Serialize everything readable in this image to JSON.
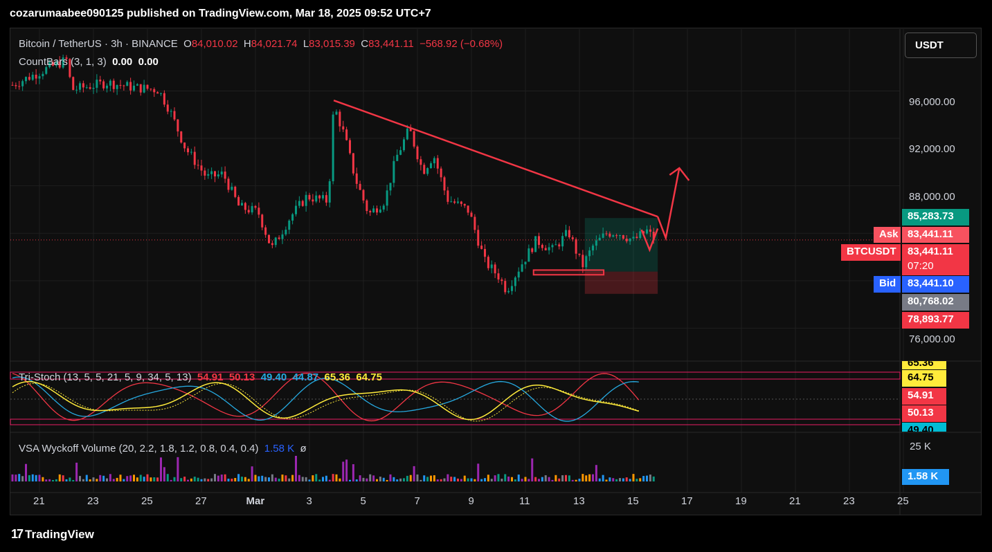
{
  "header": "cozarumaabee090125 published on TradingView.com, Mar 18, 2025 09:52 UTC+7",
  "legend": {
    "symbol": "Bitcoin / TetherUS · 3h · BINANCE",
    "o_label": "O",
    "o": "84,010.02",
    "h_label": "H",
    "h": "84,021.74",
    "l_label": "L",
    "l": "83,015.39",
    "c_label": "C",
    "c": "83,441.11",
    "change": "−568.92 (−0.68%)",
    "countbars": "CountBars (3, 1, 3)",
    "countbars_v1": "0.00",
    "countbars_v2": "0.00",
    "tristoch": "Tri-Stoch (13, 5, 5, 21, 5, 9, 34, 5, 13)",
    "ts_v1": "54.91",
    "ts_v2": "50.13",
    "ts_v3": "49.40",
    "ts_v4": "44.87",
    "ts_v5": "65.36",
    "ts_v6": "64.75",
    "vsa": "VSA Wyckoff Volume (20, 2.2, 1.8, 1.2, 0.8, 0.4, 0.4)",
    "vsa_v": "1.58 K",
    "vsa_icon": "ø"
  },
  "currency": "USDT",
  "price_axis": [
    "96,000.00",
    "92,000.00",
    "88,000.00",
    "76,000.00"
  ],
  "price_tags": {
    "target": "85,283.73",
    "ask_label": "Ask",
    "ask": "83,441.11",
    "symbol_label": "BTCUSDT",
    "last": "83,441.11",
    "countdown": "07:20",
    "bid_label": "Bid",
    "bid": "83,441.10",
    "entry": "80,768.02",
    "stop": "78,893.77"
  },
  "stoch_axis": {
    "top": "65.36",
    "v1": "64.75",
    "v2": "54.91",
    "v3": "50.13",
    "bottom": "49.40"
  },
  "volume_axis": {
    "max": "25 K",
    "current": "1.58 K"
  },
  "time_axis": [
    "21",
    "23",
    "25",
    "27",
    "Mar",
    "3",
    "5",
    "7",
    "9",
    "11",
    "13",
    "15",
    "17",
    "19",
    "21",
    "23",
    "25"
  ],
  "brand": "TradingView",
  "colors": {
    "up": "#089981",
    "down": "#f23645",
    "drawing": "#f23645",
    "bg": "#0f0f0f",
    "grid": "#1f1f1f"
  },
  "chart_data": {
    "type": "candlestick",
    "title": "Bitcoin / TetherUS · 3h · BINANCE",
    "y_range": [
      74800,
      99000
    ],
    "close_path": [
      [
        0,
        96500
      ],
      [
        1.2,
        97800
      ],
      [
        2.0,
        98600
      ],
      [
        2.2,
        96100
      ],
      [
        3.5,
        96700
      ],
      [
        4.5,
        96300
      ],
      [
        5.4,
        96100
      ],
      [
        5.8,
        94500
      ],
      [
        6.4,
        91200
      ],
      [
        7.2,
        88700
      ],
      [
        7.8,
        89000
      ],
      [
        8.4,
        86200
      ],
      [
        9.1,
        85800
      ],
      [
        9.6,
        82700
      ],
      [
        10.3,
        85400
      ],
      [
        10.9,
        87100
      ],
      [
        11.7,
        86700
      ],
      [
        11.9,
        94800
      ],
      [
        12.3,
        92200
      ],
      [
        12.7,
        88600
      ],
      [
        13.2,
        85600
      ],
      [
        13.8,
        86800
      ],
      [
        14.2,
        90300
      ],
      [
        14.7,
        92800
      ],
      [
        15.2,
        89200
      ],
      [
        15.6,
        90600
      ],
      [
        16.1,
        86900
      ],
      [
        16.6,
        86300
      ],
      [
        16.9,
        85900
      ],
      [
        17.5,
        81600
      ],
      [
        18.0,
        80400
      ],
      [
        18.3,
        79200
      ],
      [
        18.8,
        81200
      ],
      [
        19.4,
        83400
      ],
      [
        20.0,
        82600
      ],
      [
        20.6,
        84100
      ],
      [
        21.1,
        81200
      ],
      [
        21.5,
        82900
      ],
      [
        22.0,
        84000
      ],
      [
        22.4,
        84100
      ],
      [
        23.0,
        83400
      ],
      [
        23.5,
        84200
      ],
      [
        23.8,
        83400
      ]
    ],
    "drawings": {
      "trendline": [
        [
          11.9,
          95200
        ],
        [
          23.9,
          85400
        ]
      ],
      "projection": [
        [
          23.9,
          85400
        ],
        [
          24.2,
          83600
        ],
        [
          24.7,
          89500
        ]
      ],
      "long_position": {
        "x_start": 21.2,
        "x_end": 23.9,
        "target": 85283.73,
        "entry": 80768.02,
        "stop": 78893.77
      }
    },
    "last_price": 83441.11
  }
}
